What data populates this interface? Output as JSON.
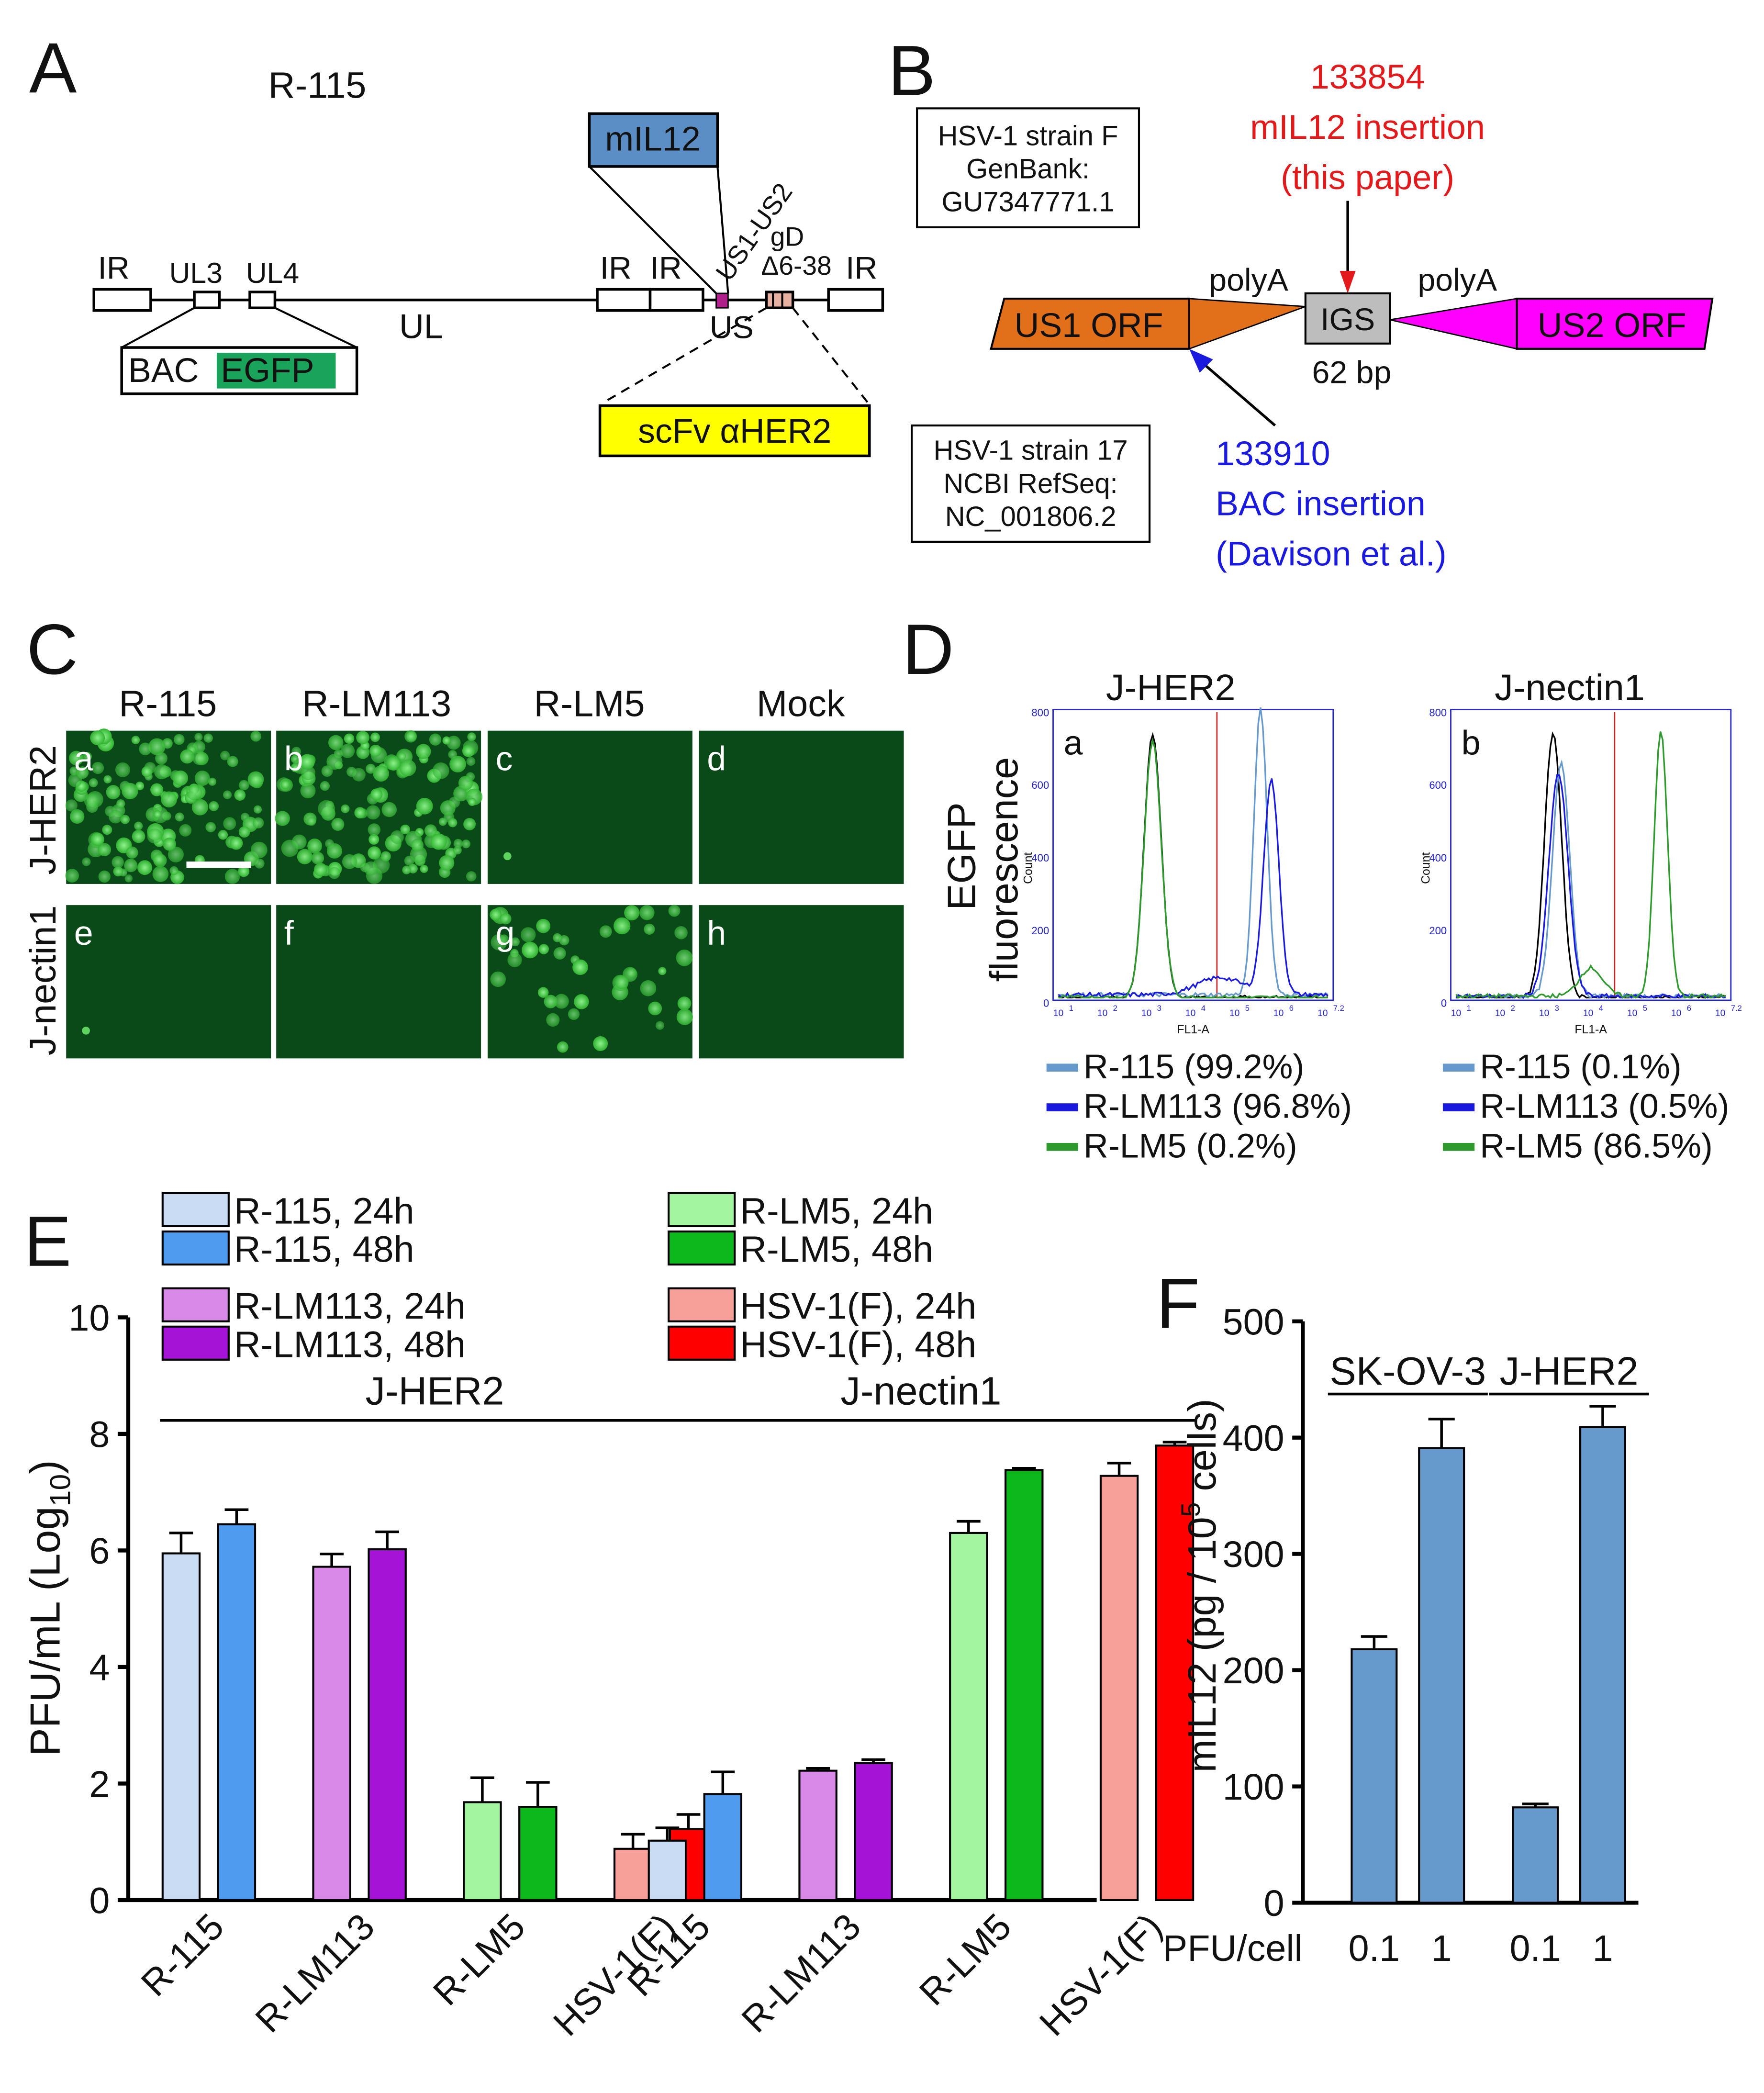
{
  "panel_letters": {
    "A": "A",
    "B": "B",
    "C": "C",
    "D": "D",
    "E": "E",
    "F": "F"
  },
  "panelA": {
    "title": "R-115",
    "mIL12": "mIL12",
    "us1us2": "US1-US2",
    "gd_top": "gD",
    "gd_bottom": "Δ6-38",
    "ir1": "IR",
    "ir2": "IR",
    "ir3": "IR",
    "ir4": "IR",
    "ul3": "UL3",
    "ul4": "UL4",
    "ul": "UL",
    "us": "US",
    "bac": "BAC",
    "egfp": "EGFP",
    "scfv": "scFv αHER2",
    "colors": {
      "mIL12": "#5b8ec4",
      "egfp": "#1aa35a",
      "scfv": "#ffff00",
      "insert": "#b0208a"
    }
  },
  "panelB": {
    "strainF": [
      "HSV-1 strain F",
      "GenBank:",
      "GU7347771.1"
    ],
    "strain17": [
      "HSV-1 strain 17",
      "NCBI RefSeq:",
      "NC_001806.2"
    ],
    "red_text": [
      "133854",
      "mIL12 insertion",
      "(this paper)"
    ],
    "blue_text": [
      "133910",
      "BAC insertion",
      "(Davison et al.)"
    ],
    "polyA_left": "polyA",
    "polyA_right": "polyA",
    "us1": "US1 ORF",
    "igs": "IGS",
    "us2": "US2 ORF",
    "bp": "62 bp",
    "colors": {
      "us1": "#e2701a",
      "us2": "#ff00ff",
      "igs": "#bdbdbd",
      "red": "#e31a1c",
      "blue": "#1a1adf"
    }
  },
  "panelC": {
    "columns": [
      "R-115",
      "R-LM113",
      "R-LM5",
      "Mock"
    ],
    "rows": [
      "J-HER2",
      "J-nectin1"
    ],
    "tiles": [
      "a",
      "b",
      "c",
      "d",
      "e",
      "f",
      "g",
      "h"
    ],
    "infected": [
      true,
      true,
      false,
      false,
      false,
      false,
      true,
      false
    ]
  },
  "panelD": {
    "ylabel_1": "EGFP",
    "ylabel_2": "fluorescence",
    "a": {
      "title": "J-HER2",
      "letter": "a",
      "count": "Count",
      "xlabel": "FL1-A",
      "legend": [
        "R-115 (99.2%)",
        "R-LM113 (96.8%)",
        "R-LM5 (0.2%)"
      ]
    },
    "b": {
      "title": "J-nectin1",
      "letter": "b",
      "count": "Count",
      "xlabel": "FL1-A",
      "legend": [
        "R-115 (0.1%)",
        "R-LM113 (0.5%)",
        "R-LM5 (86.5%)"
      ]
    },
    "yticks": [
      "800",
      "600",
      "400",
      "200",
      "0"
    ],
    "xticks": [
      "10",
      "10",
      "10",
      "10",
      "10",
      "10",
      "10"
    ],
    "xsups": [
      "1",
      "2",
      "3",
      "4",
      "5",
      "6",
      "7.2"
    ],
    "legend_colors": [
      "#6699cc",
      "#1a1adf",
      "#2e9a2e"
    ]
  },
  "chart_data": [
    {
      "type": "bar",
      "panel": "E",
      "ylabel": "PFU/mL (Log10)",
      "ylim": [
        0,
        10
      ],
      "yticks": [
        "0",
        "2",
        "4",
        "6",
        "8",
        "10"
      ],
      "groups": [
        {
          "name": "J-HER2",
          "categories": [
            "R-115",
            "R-LM113",
            "R-LM5",
            "HSV-1(F)"
          ],
          "series": [
            {
              "name": "24h",
              "values": [
                5.95,
                5.72,
                1.68,
                0.88
              ],
              "errors": [
                0.35,
                0.22,
                0.42,
                0.25
              ]
            },
            {
              "name": "48h",
              "values": [
                6.45,
                6.02,
                1.6,
                1.22
              ],
              "errors": [
                0.25,
                0.3,
                0.42,
                0.25
              ]
            }
          ]
        },
        {
          "name": "J-nectin1",
          "categories": [
            "R-115",
            "R-LM113",
            "R-LM5",
            "HSV-1(F)"
          ],
          "series": [
            {
              "name": "24h",
              "values": [
                1.02,
                2.22,
                6.3,
                7.28
              ],
              "errors": [
                0.22,
                0.04,
                0.2,
                0.22
              ]
            },
            {
              "name": "48h",
              "values": [
                1.82,
                2.35,
                7.38,
                7.8
              ],
              "errors": [
                0.38,
                0.06,
                0.03,
                0.06
              ]
            }
          ]
        }
      ],
      "legend": [
        "R-115, 24h",
        "R-115, 48h",
        "R-LM113, 24h",
        "R-LM113, 48h",
        "R-LM5, 24h",
        "R-LM5, 48h",
        "HSV-1(F), 24h",
        "HSV-1(F), 48h"
      ],
      "colors": {
        "R-115": [
          "#c9dcf3",
          "#4f9bf0"
        ],
        "R-LM113": [
          "#d98ae8",
          "#a513d6"
        ],
        "R-LM5": [
          "#a3f5a0",
          "#0db81d"
        ],
        "HSV-1(F)": [
          "#f7a09a",
          "#ff0000"
        ]
      }
    },
    {
      "type": "bar",
      "panel": "F",
      "ylabel": "mIL12 (pg / 10^5 cells)",
      "ylim": [
        0,
        500
      ],
      "yticks": [
        "0",
        "100",
        "200",
        "300",
        "400",
        "500"
      ],
      "xlabel": "PFU/cell",
      "groups": [
        {
          "name": "SK-OV-3",
          "categories": [
            "0.1",
            "1"
          ],
          "values": [
            218,
            391
          ],
          "errors": [
            11,
            25
          ]
        },
        {
          "name": "J-HER2",
          "categories": [
            "0.1",
            "1"
          ],
          "values": [
            82,
            409
          ],
          "errors": [
            3,
            18
          ]
        }
      ],
      "color": "#6699cc"
    }
  ]
}
